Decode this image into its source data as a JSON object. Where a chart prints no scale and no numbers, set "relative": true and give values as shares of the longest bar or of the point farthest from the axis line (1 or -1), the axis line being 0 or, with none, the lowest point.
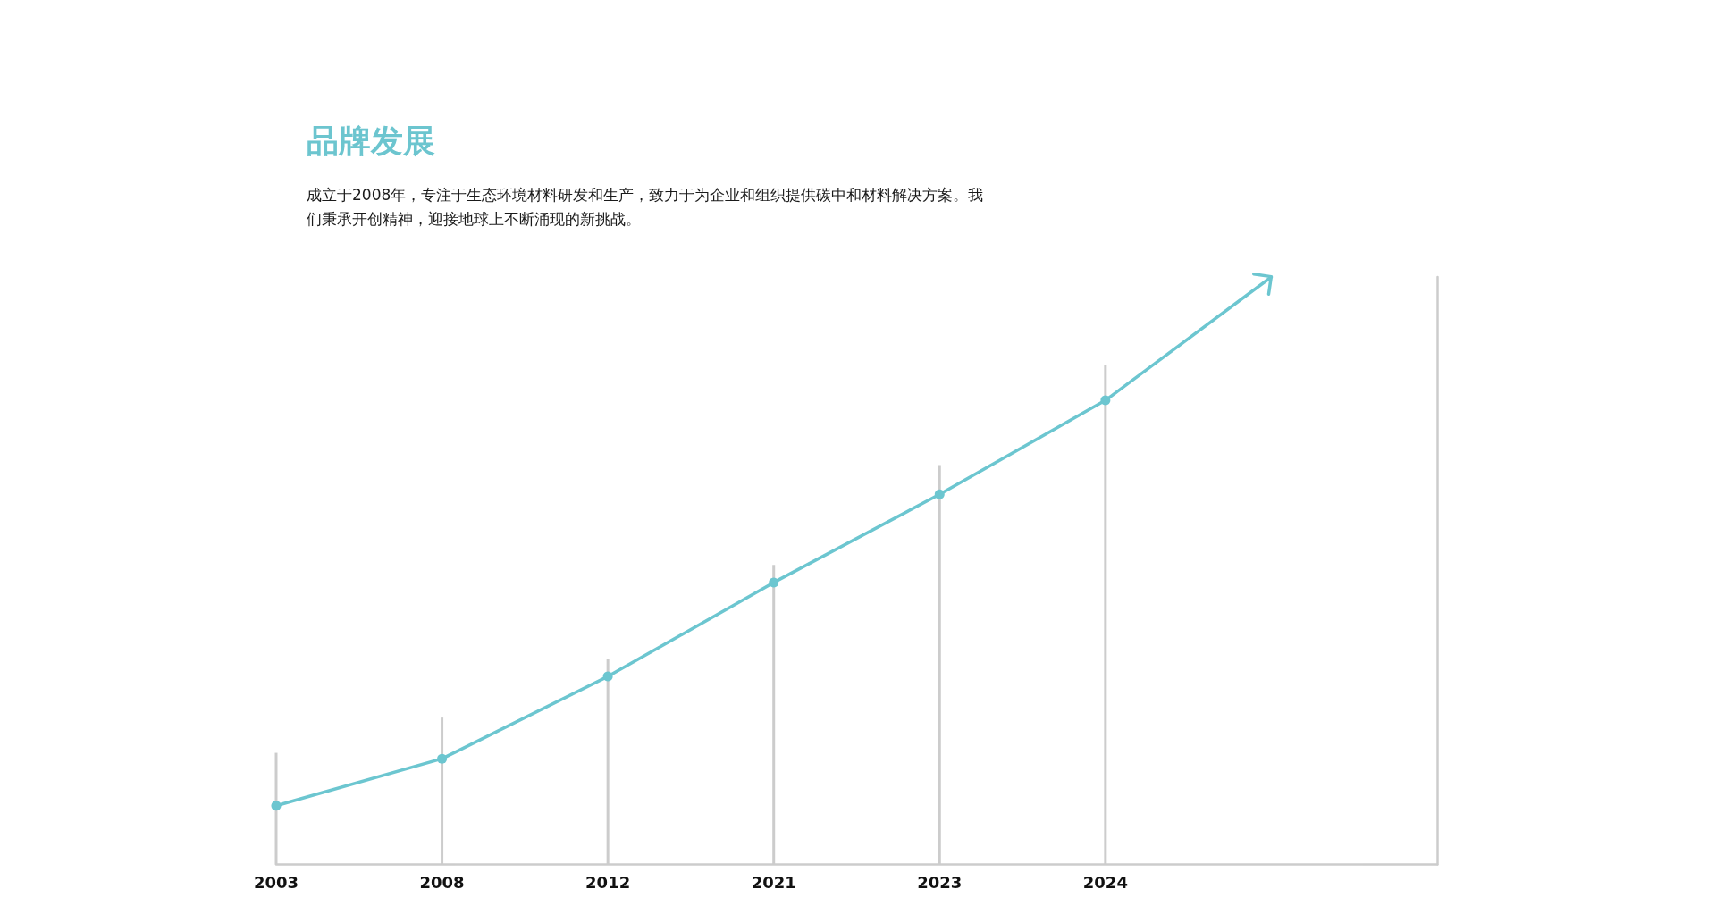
{
  "chart_data": {
    "type": "line",
    "title": "品牌发展",
    "subtitle": "成立于2008年，专注于生态环境材料研发和生产，致力于为企业和组织提供碳中和材料解决方案。我们秉承开创精神，迎接地球上不断涌现的新挑战。",
    "categories": [
      "2003",
      "2008",
      "2012",
      "2021",
      "2023",
      "2024",
      null,
      null
    ],
    "relative": true,
    "series": [
      {
        "type": "bar",
        "color": "#cccccc",
        "values": [
          0.19,
          0.25,
          0.35,
          0.51,
          0.68,
          0.85,
          null,
          null
        ]
      },
      {
        "color": "#6cc6d0",
        "values": [
          0.1,
          0.18,
          0.32,
          0.48,
          0.63,
          0.79,
          1,
          null
        ]
      }
    ],
    "marker": "circle",
    "line_style": "solid"
  }
}
